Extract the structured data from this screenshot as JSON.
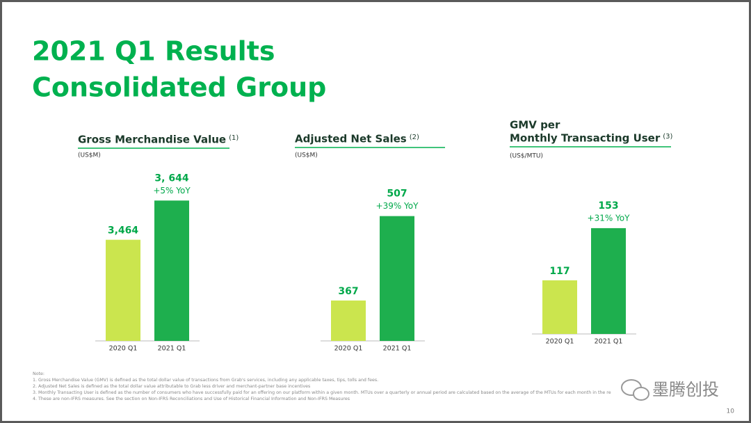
{
  "header": {
    "title": "2021 Q1 Results",
    "subtitle": "Consolidated Group"
  },
  "chart_data": [
    {
      "type": "bar",
      "title_lines": [
        "Gross Merchandise Value"
      ],
      "title_note": "(1)",
      "unit": "(US$M)",
      "categories": [
        "2020 Q1",
        "2021 Q1"
      ],
      "series": [
        {
          "name": null,
          "colors": [
            "#cbe54e",
            "#1eaf4e"
          ],
          "values": [
            3464,
            3644
          ],
          "value_labels": [
            "3,464",
            "3, 644"
          ],
          "annotations": [
            null,
            "+5% YoY"
          ]
        }
      ],
      "ylim": [
        3000,
        3830
      ]
    },
    {
      "type": "bar",
      "title_lines": [
        "Adjusted Net Sales"
      ],
      "title_note": "(2)",
      "unit": "(US$M)",
      "categories": [
        "2020 Q1",
        "2021 Q1"
      ],
      "series": [
        {
          "name": null,
          "colors": [
            "#cbe54e",
            "#1eaf4e"
          ],
          "values": [
            367,
            507
          ],
          "annotations": [
            null,
            "+39% YoY"
          ]
        }
      ],
      "ylim": [
        300,
        600
      ]
    },
    {
      "type": "bar",
      "title_lines": [
        "GMV per",
        "Monthly Transacting User"
      ],
      "title_note": "(3)",
      "unit": "(US$/MTU)",
      "categories": [
        "2020 Q1",
        "2021 Q1"
      ],
      "series": [
        {
          "name": null,
          "colors": [
            "#cbe54e",
            "#1eaf4e"
          ],
          "values": [
            117,
            153
          ],
          "annotations": [
            null,
            "+31% YoY"
          ]
        }
      ],
      "ylim": [
        80,
        200
      ]
    }
  ],
  "notes": [
    "Note:",
    "1. Gross Merchandise Value (GMV) is defined as the total dollar value of transactions from Grab's services, including any applicable taxes, tips, tolls and fees.",
    "2. Adjusted Net Sales is defined as the total dollar value attributable to Grab less driver and merchant-partner base incentives",
    "3. Monthly Transacting User is defined as the number of consumers who have successfully paid for an offering on our platform within a given month. MTUs over a quarterly or annual period are calculated based on the average of the MTUs for each month in the re",
    "4. These are non-IFRS measures. See the section on Non-IFRS Reconciliations and Use of Historical Financial Information and Non-IFRS Measures"
  ],
  "page_number": "10",
  "watermark": "墨腾创投"
}
